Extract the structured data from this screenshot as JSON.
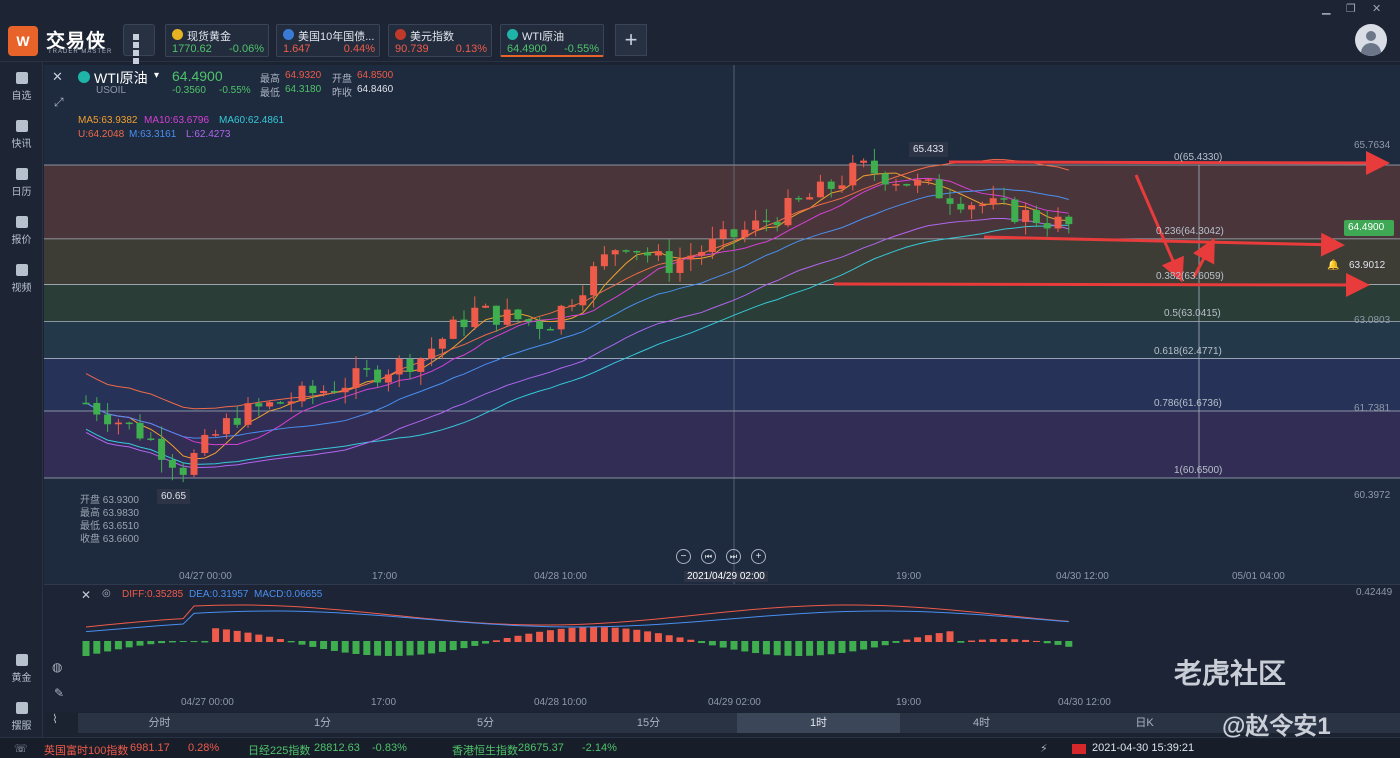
{
  "app": {
    "brand": "交易侠",
    "brand_sub": "TRADER MASTER"
  },
  "tabs": [
    {
      "name": "现货黄金",
      "price": "1770.62",
      "change": "-0.06%",
      "icon_color": "#e6b422",
      "price_color": "#4fc36b",
      "change_color": "#4fc36b"
    },
    {
      "name": "美国10年国债...",
      "price": "1.647",
      "change": "0.44%",
      "icon_color": "#3a7bd5",
      "price_color": "#ef5b4a",
      "change_color": "#ef5b4a"
    },
    {
      "name": "美元指数",
      "price": "90.739",
      "change": "0.13%",
      "icon_color": "#c0392b",
      "price_color": "#ef5b4a",
      "change_color": "#ef5b4a"
    },
    {
      "name": "WTI原油",
      "price": "64.4900",
      "change": "-0.55%",
      "icon_color": "#1fb4a8",
      "price_color": "#4fc36b",
      "change_color": "#4fc36b"
    }
  ],
  "sidebar": {
    "items": [
      {
        "label": "自选",
        "icon": "star-icon"
      },
      {
        "label": "快讯",
        "icon": "news-icon"
      },
      {
        "label": "日历",
        "icon": "calendar-icon"
      },
      {
        "label": "报价",
        "icon": "quote-icon"
      },
      {
        "label": "视频",
        "icon": "video-icon"
      }
    ],
    "bottom": [
      {
        "label": "黄金",
        "icon": "gold-icon"
      },
      {
        "label": "摆服",
        "icon": "wallet-icon"
      }
    ]
  },
  "symbol": {
    "name": "WTI原油",
    "code": "USOIL",
    "price": "64.4900",
    "change": "-0.3560",
    "change_pct": "-0.55%",
    "high_label": "最高",
    "high": "64.9320",
    "open_label": "开盘",
    "open": "64.8500",
    "low_label": "最低",
    "low": "64.3180",
    "prev_label": "昨收",
    "prev": "64.8460"
  },
  "indicators": {
    "ma5": "MA5:63.9382",
    "ma10": "MA10:63.6796",
    "ma60": "MA60:62.4861",
    "boll_u": "U:64.2048",
    "boll_m": "M:63.3161",
    "boll_l": "L:62.4273"
  },
  "ohlc_popup": {
    "open": "开盘 63.9300",
    "high": "最高 63.9830",
    "low": "最低 63.6510",
    "close": "收盘 63.6600"
  },
  "price_axis": [
    "65.7634",
    "63.0803",
    "61.7381",
    "60.3972"
  ],
  "current_price": "64.4900",
  "alert_price": "63.9012",
  "peak_label": "65.433",
  "trough_label": "60.65",
  "fib_levels": [
    {
      "label": "0(65.4330)",
      "value": 65.433
    },
    {
      "label": "0.236(64.3042)",
      "value": 64.3042
    },
    {
      "label": "0.382(63.6059)",
      "value": 63.6059
    },
    {
      "label": "0.5(63.0415)",
      "value": 63.0415
    },
    {
      "label": "0.618(62.4771)",
      "value": 62.4771
    },
    {
      "label": "0.786(61.6736)",
      "value": 61.6736
    },
    {
      "label": "1(60.6500)",
      "value": 60.65
    }
  ],
  "time_axis": [
    "04/27 00:00",
    "17:00",
    "04/28 10:00",
    "2021/04/29 02:00",
    "19:00",
    "04/30 12:00",
    "05/01 04:00"
  ],
  "macd": {
    "diff": "DIFF:0.35285",
    "dea": "DEA:0.31957",
    "macd": "MACD:0.06655",
    "axis_top": "0.42449"
  },
  "macd_time_axis": [
    "04/27 00:00",
    "17:00",
    "04/28 10:00",
    "04/29 02:00",
    "19:00",
    "04/30 12:00"
  ],
  "periods": [
    "分时",
    "1分",
    "5分",
    "15分",
    "1时",
    "4时",
    "日K"
  ],
  "active_period": "1时",
  "bottom_ticker": [
    {
      "name": "英国富时100指数",
      "value": "6981.17",
      "change": "0.28%",
      "color": "#ef5b4a"
    },
    {
      "name": "日经225指数",
      "value": "28812.63",
      "change": "-0.83%",
      "color": "#4fc36b"
    },
    {
      "name": "香港恒生指数",
      "value": "28675.37",
      "change": "-2.14%",
      "color": "#4fc36b"
    }
  ],
  "datetime": "2021-04-30 15:39:21",
  "watermark": {
    "line1": "老虎社区",
    "line2": "@赵令安1"
  }
}
